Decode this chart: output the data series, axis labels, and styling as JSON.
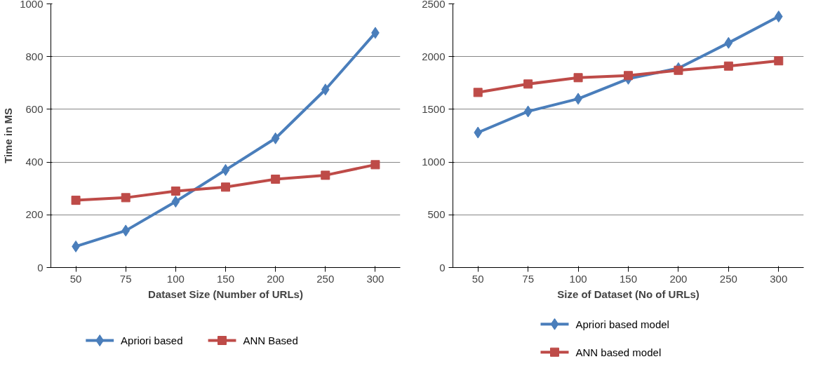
{
  "chart_data": [
    {
      "type": "line",
      "xlabel": "Dataset Size (Number of URLs)",
      "ylabel": "Time in MS",
      "categories": [
        "50",
        "75",
        "100",
        "150",
        "200",
        "250",
        "300"
      ],
      "ylim": [
        0,
        1000
      ],
      "yticks": [
        0,
        200,
        400,
        600,
        800,
        1000
      ],
      "grid": "y",
      "legend": "bottom",
      "series": [
        {
          "name": "Apriori based",
          "color": "#4a7ebb",
          "marker": "diamond",
          "values": [
            80,
            140,
            250,
            370,
            490,
            675,
            890
          ]
        },
        {
          "name": "ANN Based",
          "color": "#be4b48",
          "marker": "square",
          "values": [
            255,
            265,
            290,
            305,
            335,
            350,
            390
          ]
        }
      ]
    },
    {
      "type": "line",
      "xlabel": "Size of Dataset (No of URLs)",
      "categories": [
        "50",
        "75",
        "100",
        "150",
        "200",
        "250",
        "300"
      ],
      "ylim": [
        0,
        2500
      ],
      "yticks": [
        0,
        500,
        1000,
        1500,
        2000,
        2500
      ],
      "grid": "y",
      "legend": "bottom",
      "series": [
        {
          "name": "Apriori based model",
          "color": "#4a7ebb",
          "marker": "diamond",
          "values": [
            1280,
            1480,
            1600,
            1790,
            1890,
            2130,
            2380
          ]
        },
        {
          "name": "ANN based model",
          "color": "#be4b48",
          "marker": "square",
          "values": [
            1660,
            1740,
            1800,
            1820,
            1870,
            1910,
            1960
          ]
        }
      ]
    }
  ]
}
